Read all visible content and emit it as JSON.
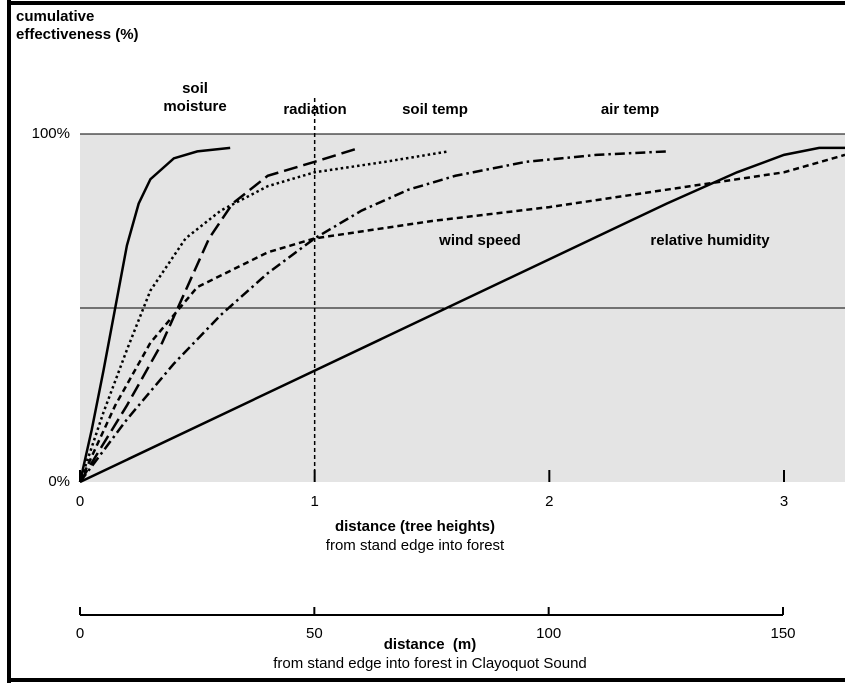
{
  "chart_data": {
    "type": "line",
    "y_title": "cumulative effectiveness (%)",
    "x_title": "distance (tree heights)",
    "x_subtitle": "from stand edge into forest",
    "x2_title": "distance  (m)",
    "x2_subtitle": "from stand edge into forest in Clayoquot Sound",
    "xlim": [
      0,
      3.26
    ],
    "xticks": [
      0,
      1,
      2,
      3
    ],
    "ylim": [
      0,
      100
    ],
    "yticks": [
      {
        "value": 0,
        "label": "0%"
      },
      {
        "value": 100,
        "label": "100%"
      }
    ],
    "ygrid": [
      50,
      100
    ],
    "x2lim": [
      0,
      150
    ],
    "x2ticks": [
      0,
      50,
      100,
      150
    ],
    "vline": 1,
    "series": [
      {
        "name": "soil moisture",
        "color": "#000000",
        "style": "solid",
        "x": [
          0,
          0.05,
          0.1,
          0.15,
          0.2,
          0.25,
          0.3,
          0.4,
          0.5,
          0.64
        ],
        "values": [
          0,
          15,
          32,
          50,
          68,
          80,
          87,
          93,
          95,
          96
        ]
      },
      {
        "name": "radiation",
        "color": "#000000",
        "style": "longdash",
        "x": [
          0,
          0.2,
          0.35,
          0.45,
          0.55,
          0.65,
          0.8,
          1.0,
          1.19
        ],
        "values": [
          0,
          22,
          40,
          55,
          70,
          80,
          88,
          92,
          96
        ]
      },
      {
        "name": "soil temp",
        "color": "#000000",
        "style": "dotted",
        "x": [
          0,
          0.1,
          0.2,
          0.3,
          0.45,
          0.6,
          0.8,
          1.0,
          1.3,
          1.57
        ],
        "values": [
          0,
          20,
          38,
          55,
          70,
          78,
          85,
          89,
          92,
          95
        ]
      },
      {
        "name": "air temp",
        "color": "#000000",
        "style": "dashdot",
        "x": [
          0,
          0.2,
          0.4,
          0.6,
          0.8,
          1.0,
          1.2,
          1.4,
          1.6,
          1.9,
          2.2,
          2.5
        ],
        "values": [
          0,
          18,
          34,
          48,
          60,
          70,
          78,
          84,
          88,
          92,
          94,
          95
        ]
      },
      {
        "name": "wind speed",
        "color": "#000000",
        "style": "shortdash",
        "x": [
          0,
          0.15,
          0.3,
          0.5,
          0.8,
          1.0,
          1.5,
          2.0,
          2.5,
          3.0,
          3.26
        ],
        "values": [
          0,
          22,
          40,
          56,
          66,
          70,
          75,
          79,
          84,
          89,
          94
        ]
      },
      {
        "name": "relative humidity",
        "color": "#000000",
        "style": "solid",
        "x": [
          0,
          2.5,
          2.8,
          3.0,
          3.15,
          3.26
        ],
        "values": [
          0,
          80,
          89,
          94,
          96,
          96
        ]
      }
    ]
  }
}
